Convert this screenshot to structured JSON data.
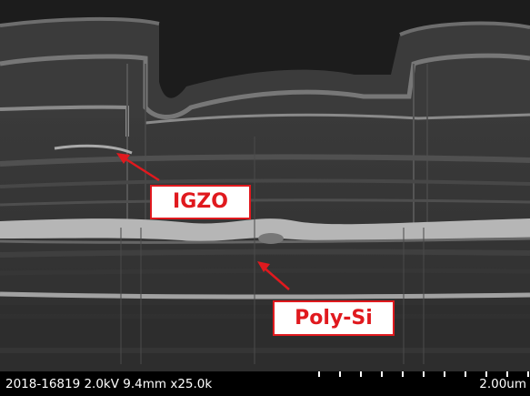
{
  "micrograph": {
    "callouts": [
      {
        "label": "IGZO",
        "color": "#e0191e"
      },
      {
        "label": "Poly-Si",
        "color": "#e0191e"
      }
    ],
    "colors": {
      "background": "#1e1e1e",
      "layer_gray": "#6b6b6b",
      "bright_layer": "#b9b9b9",
      "accent": "#e0191e"
    }
  },
  "info_bar": {
    "text": "2018-16819 2.0kV 9.4mm x25.0k",
    "scale_label": "2.00um"
  }
}
